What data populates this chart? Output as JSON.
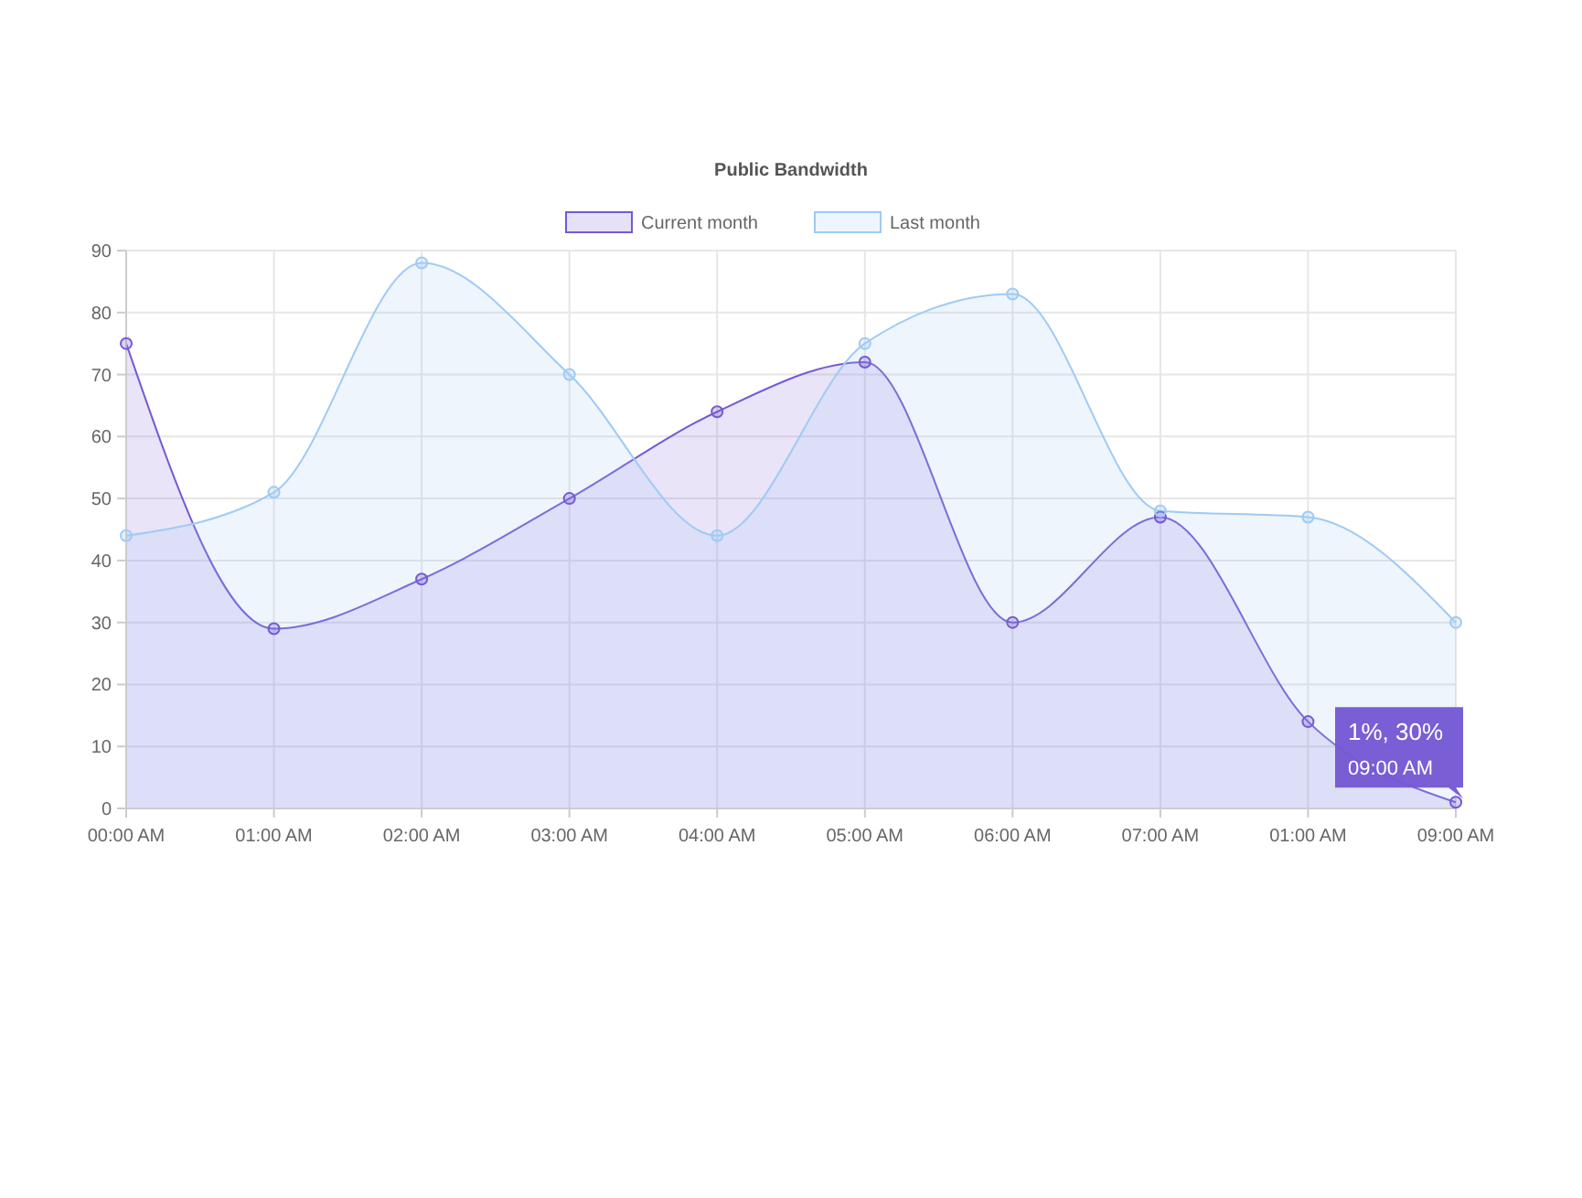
{
  "chart_data": {
    "type": "area",
    "title": "Public Bandwidth",
    "categories": [
      "00:00 AM",
      "01:00 AM",
      "02:00 AM",
      "03:00 AM",
      "04:00 AM",
      "05:00 AM",
      "06:00 AM",
      "07:00 AM",
      "01:00 AM",
      "09:00 AM"
    ],
    "series": [
      {
        "name": "Current month",
        "color": "#7559d4",
        "values": [
          75,
          29,
          37,
          50,
          64,
          72,
          30,
          47,
          14,
          1
        ]
      },
      {
        "name": "Last month",
        "color": "#9fcaf5",
        "values": [
          44,
          51,
          88,
          70,
          44,
          75,
          83,
          48,
          47,
          30
        ]
      }
    ],
    "ylim": [
      0,
      90
    ],
    "yticks": [
      0,
      10,
      20,
      30,
      40,
      50,
      60,
      70,
      80,
      90
    ],
    "grid": true,
    "legend": "top",
    "marker": "circle",
    "annotations": [
      "1%, 30%",
      "09:00 AM"
    ]
  }
}
